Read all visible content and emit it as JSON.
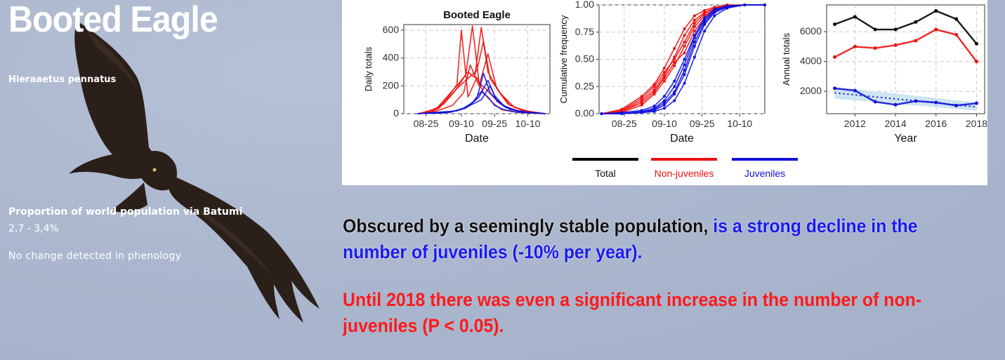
{
  "species": {
    "common_name": "Booted Eagle",
    "latin_name": "Hieraaetus pennatus"
  },
  "stats": {
    "proportion_label": "Proportion of world population via Batumi",
    "proportion_value": "2,7 - 3,4%",
    "phenology_note": "No change detected in phenology"
  },
  "colors": {
    "total": "#000000",
    "non_juveniles": "#ee1111",
    "juveniles": "#1111dd",
    "trend_band": "#bfe0ef"
  },
  "legend": [
    {
      "label": "Total",
      "color": "#000000"
    },
    {
      "label": "Non-juveniles",
      "color": "#ee1111"
    },
    {
      "label": "Juveniles",
      "color": "#1111dd"
    }
  ],
  "chart_data": [
    {
      "type": "line",
      "title": "Booted Eagle",
      "xlabel": "Date",
      "ylabel": "Daily totals",
      "x_ticks": [
        "08-25",
        "09-10",
        "09-25",
        "10-10"
      ],
      "y_ticks": [
        0,
        200,
        400,
        600
      ],
      "ylim": [
        0,
        640
      ],
      "x_range": [
        "08-15",
        "10-20"
      ],
      "grid": true,
      "series": [
        {
          "group": "non_juveniles",
          "x": [
            "08-21",
            "08-26",
            "08-31",
            "09-05",
            "09-08",
            "09-10",
            "09-13",
            "09-17",
            "09-20",
            "09-24",
            "09-28",
            "10-03",
            "10-10",
            "10-18"
          ],
          "values": [
            0,
            5,
            40,
            140,
            210,
            600,
            120,
            260,
            150,
            80,
            30,
            15,
            5,
            0
          ]
        },
        {
          "group": "non_juveniles",
          "x": [
            "08-21",
            "08-27",
            "09-02",
            "09-07",
            "09-12",
            "09-15",
            "09-18",
            "09-21",
            "09-25",
            "09-30",
            "10-06",
            "10-13",
            "10-18"
          ],
          "values": [
            0,
            10,
            70,
            160,
            280,
            630,
            220,
            180,
            110,
            50,
            20,
            5,
            0
          ]
        },
        {
          "group": "non_juveniles",
          "x": [
            "08-22",
            "08-30",
            "09-04",
            "09-09",
            "09-13",
            "09-16",
            "09-19",
            "09-22",
            "09-27",
            "10-02",
            "10-09",
            "10-18"
          ],
          "values": [
            0,
            40,
            130,
            220,
            300,
            260,
            620,
            300,
            160,
            60,
            20,
            0
          ]
        },
        {
          "group": "non_juveniles",
          "x": [
            "08-21",
            "08-28",
            "09-03",
            "09-08",
            "09-12",
            "09-17",
            "09-20",
            "09-23",
            "09-28",
            "10-04",
            "10-12",
            "10-18"
          ],
          "values": [
            0,
            20,
            90,
            180,
            240,
            310,
            520,
            250,
            140,
            45,
            10,
            0
          ]
        },
        {
          "group": "non_juveniles",
          "x": [
            "08-22",
            "08-29",
            "09-06",
            "09-11",
            "09-14",
            "09-18",
            "09-22",
            "09-26",
            "10-01",
            "10-08",
            "10-18"
          ],
          "values": [
            0,
            15,
            60,
            150,
            350,
            200,
            430,
            180,
            70,
            20,
            0
          ]
        },
        {
          "group": "juveniles",
          "x": [
            "08-21",
            "09-02",
            "09-10",
            "09-15",
            "09-19",
            "09-22",
            "09-25",
            "09-29",
            "10-05",
            "10-12",
            "10-18"
          ],
          "values": [
            0,
            5,
            30,
            80,
            160,
            120,
            60,
            30,
            10,
            5,
            0
          ]
        },
        {
          "group": "juveniles",
          "x": [
            "08-21",
            "09-05",
            "09-12",
            "09-17",
            "09-20",
            "09-23",
            "09-27",
            "10-02",
            "10-09",
            "10-18"
          ],
          "values": [
            0,
            10,
            40,
            110,
            290,
            150,
            80,
            30,
            10,
            0
          ]
        },
        {
          "group": "juveniles",
          "x": [
            "08-22",
            "09-06",
            "09-13",
            "09-18",
            "09-22",
            "09-25",
            "09-29",
            "10-04",
            "10-11",
            "10-18"
          ],
          "values": [
            0,
            15,
            50,
            120,
            240,
            130,
            60,
            25,
            10,
            0
          ]
        },
        {
          "group": "juveniles",
          "x": [
            "08-21",
            "09-08",
            "09-14",
            "09-19",
            "09-23",
            "09-26",
            "09-30",
            "10-06",
            "10-18"
          ],
          "values": [
            0,
            20,
            60,
            100,
            200,
            90,
            45,
            15,
            0
          ]
        }
      ]
    },
    {
      "type": "line",
      "title": "",
      "xlabel": "Date",
      "ylabel": "Cumulative frequency",
      "x_ticks": [
        "08-25",
        "09-10",
        "09-25",
        "10-10"
      ],
      "y_ticks": [
        "0.00",
        "0.25",
        "0.50",
        "0.75",
        "1.00"
      ],
      "ylim": [
        0,
        1
      ],
      "x_range": [
        "08-15",
        "10-20"
      ],
      "grid": true,
      "markers": true,
      "series": [
        {
          "group": "non_juveniles",
          "x": [
            "08-16",
            "08-24",
            "09-01",
            "09-06",
            "09-10",
            "09-14",
            "09-18",
            "09-22",
            "09-26",
            "09-30",
            "10-05",
            "10-12",
            "10-20"
          ],
          "values": [
            0,
            0.02,
            0.12,
            0.22,
            0.35,
            0.52,
            0.72,
            0.86,
            0.93,
            0.97,
            0.99,
            1,
            1
          ]
        },
        {
          "group": "non_juveniles",
          "x": [
            "08-16",
            "08-24",
            "09-01",
            "09-06",
            "09-10",
            "09-14",
            "09-18",
            "09-22",
            "09-26",
            "09-30",
            "10-05",
            "10-12",
            "10-20"
          ],
          "values": [
            0,
            0.04,
            0.16,
            0.27,
            0.42,
            0.6,
            0.78,
            0.9,
            0.95,
            0.98,
            1,
            1,
            1
          ]
        },
        {
          "group": "non_juveniles",
          "x": [
            "08-16",
            "08-24",
            "09-01",
            "09-06",
            "09-10",
            "09-14",
            "09-18",
            "09-22",
            "09-26",
            "09-30",
            "10-05",
            "10-12",
            "10-20"
          ],
          "values": [
            0,
            0.01,
            0.08,
            0.18,
            0.3,
            0.44,
            0.62,
            0.8,
            0.9,
            0.96,
            0.99,
            1,
            1
          ]
        },
        {
          "group": "non_juveniles",
          "x": [
            "08-16",
            "08-24",
            "09-01",
            "09-06",
            "09-10",
            "09-14",
            "09-18",
            "09-22",
            "09-26",
            "09-30",
            "10-05",
            "10-12",
            "10-20"
          ],
          "values": [
            0,
            0.03,
            0.14,
            0.25,
            0.38,
            0.5,
            0.66,
            0.83,
            0.92,
            0.97,
            0.99,
            1,
            1
          ]
        },
        {
          "group": "non_juveniles",
          "x": [
            "08-16",
            "08-24",
            "09-01",
            "09-06",
            "09-10",
            "09-14",
            "09-18",
            "09-22",
            "09-26",
            "09-30",
            "10-05",
            "10-12",
            "10-20"
          ],
          "values": [
            0,
            0.02,
            0.1,
            0.2,
            0.33,
            0.47,
            0.56,
            0.76,
            0.88,
            0.95,
            0.99,
            1,
            1
          ]
        },
        {
          "group": "juveniles",
          "x": [
            "08-16",
            "08-24",
            "09-01",
            "09-06",
            "09-10",
            "09-14",
            "09-18",
            "09-22",
            "09-26",
            "09-30",
            "10-05",
            "10-12",
            "10-20"
          ],
          "values": [
            0,
            0,
            0.01,
            0.03,
            0.08,
            0.18,
            0.36,
            0.62,
            0.82,
            0.93,
            0.98,
            1,
            1
          ]
        },
        {
          "group": "juveniles",
          "x": [
            "08-16",
            "08-24",
            "09-01",
            "09-06",
            "09-10",
            "09-14",
            "09-18",
            "09-22",
            "09-26",
            "09-30",
            "10-05",
            "10-12",
            "10-20"
          ],
          "values": [
            0,
            0,
            0.02,
            0.05,
            0.12,
            0.25,
            0.45,
            0.7,
            0.86,
            0.95,
            0.99,
            1,
            1
          ]
        },
        {
          "group": "juveniles",
          "x": [
            "08-16",
            "08-24",
            "09-01",
            "09-06",
            "09-10",
            "09-14",
            "09-18",
            "09-22",
            "09-26",
            "09-30",
            "10-05",
            "10-12",
            "10-20"
          ],
          "values": [
            0,
            0,
            0.01,
            0.02,
            0.05,
            0.12,
            0.28,
            0.52,
            0.76,
            0.9,
            0.97,
            1,
            1
          ]
        },
        {
          "group": "juveniles",
          "x": [
            "08-16",
            "08-24",
            "09-01",
            "09-06",
            "09-10",
            "09-14",
            "09-18",
            "09-22",
            "09-26",
            "09-30",
            "10-05",
            "10-12",
            "10-20"
          ],
          "values": [
            0,
            0.01,
            0.03,
            0.07,
            0.16,
            0.3,
            0.5,
            0.72,
            0.88,
            0.96,
            0.99,
            1,
            1
          ]
        },
        {
          "group": "juveniles",
          "x": [
            "08-16",
            "08-24",
            "09-01",
            "09-06",
            "09-10",
            "09-14",
            "09-18",
            "09-22",
            "09-26",
            "09-30",
            "10-05",
            "10-12",
            "10-20"
          ],
          "values": [
            0,
            0,
            0.01,
            0.04,
            0.1,
            0.2,
            0.4,
            0.66,
            0.84,
            0.94,
            0.98,
            1,
            1
          ]
        }
      ]
    },
    {
      "type": "line",
      "title": "",
      "xlabel": "Year",
      "ylabel": "Annual totals",
      "x_ticks": [
        2012,
        2014,
        2016,
        2018
      ],
      "y_ticks": [
        2000,
        4000,
        6000
      ],
      "xlim": [
        2010.6,
        2018.4
      ],
      "ylim": [
        500,
        7800
      ],
      "grid": true,
      "markers": true,
      "x": [
        2011,
        2012,
        2013,
        2014,
        2015,
        2016,
        2017,
        2018
      ],
      "series": [
        {
          "group": "total",
          "values": [
            6500,
            7000,
            6150,
            6150,
            6650,
            7400,
            6850,
            5200
          ]
        },
        {
          "group": "non_juveniles",
          "values": [
            4300,
            5000,
            4900,
            5100,
            5400,
            6150,
            5800,
            4000
          ]
        },
        {
          "group": "juveniles",
          "values": [
            2200,
            2050,
            1300,
            1100,
            1350,
            1250,
            1050,
            1200
          ]
        }
      ],
      "trend": {
        "group": "juveniles",
        "style": "dotted",
        "x": [
          2011,
          2018
        ],
        "values": [
          1900,
          950
        ],
        "band_lower": [
          1500,
          700
        ],
        "band_upper": [
          2300,
          1250
        ]
      }
    }
  ],
  "messages": {
    "line1_black": "Obscured by a seemingly stable population,",
    "line1_blue": "is a strong decline in the number of juveniles (-10% per year).",
    "line2_red": "Until 2018 there was even a significant increase in the number of non-juveniles (P < 0.05)."
  }
}
